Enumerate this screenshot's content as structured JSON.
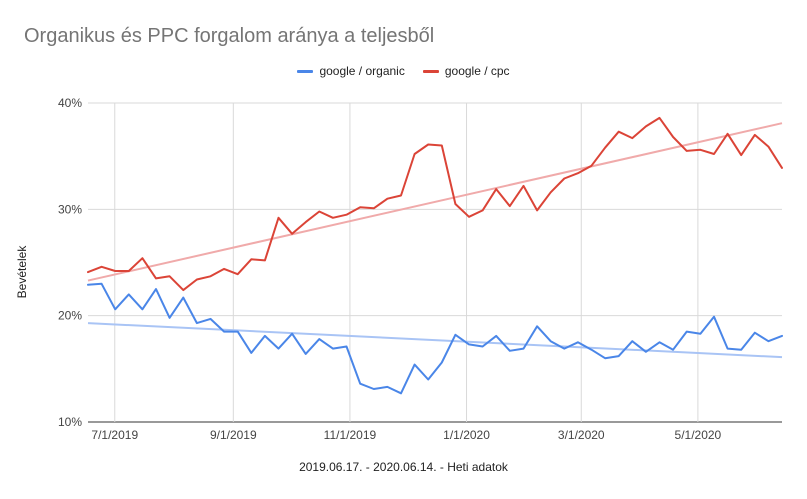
{
  "chart_data": {
    "type": "line",
    "title": "Organikus és PPC forgalom aránya a teljesből",
    "xlabel": "2019.06.17. - 2020.06.14. - Heti adatok",
    "ylabel": "Bevételek",
    "legend_position": "top-center",
    "grid": true,
    "ylim": [
      10,
      40
    ],
    "y_ticks": [
      "10%",
      "20%",
      "30%",
      "40%"
    ],
    "x_range": [
      "2019-06-17",
      "2020-06-14"
    ],
    "x_ticks": [
      {
        "label": "7/1/2019",
        "date": "2019-07-01"
      },
      {
        "label": "9/1/2019",
        "date": "2019-09-01"
      },
      {
        "label": "11/1/2019",
        "date": "2019-11-01"
      },
      {
        "label": "1/1/2020",
        "date": "2020-01-01"
      },
      {
        "label": "3/1/2020",
        "date": "2020-03-01"
      },
      {
        "label": "5/1/2020",
        "date": "2020-05-01"
      }
    ],
    "series": [
      {
        "name": "google / organic",
        "color": "#4a86e8",
        "trendline_color": "#a9c4f5",
        "trendline": [
          19.3,
          16.1
        ],
        "values": [
          22.9,
          23.0,
          20.6,
          22.0,
          20.6,
          22.5,
          19.8,
          21.7,
          19.3,
          19.7,
          18.5,
          18.5,
          16.5,
          18.1,
          16.9,
          18.3,
          16.4,
          17.8,
          16.9,
          17.1,
          13.6,
          13.1,
          13.3,
          12.7,
          15.4,
          14.0,
          15.6,
          18.2,
          17.3,
          17.1,
          18.1,
          16.7,
          16.9,
          19.0,
          17.6,
          16.9,
          17.5,
          16.8,
          16.0,
          16.2,
          17.6,
          16.6,
          17.5,
          16.8,
          18.5,
          18.3,
          19.9,
          16.9,
          16.8,
          18.4,
          17.6,
          18.1
        ]
      },
      {
        "name": "google / cpc",
        "color": "#db4437",
        "trendline_color": "#f0aaaa",
        "trendline": [
          23.3,
          38.1
        ],
        "values": [
          24.1,
          24.6,
          24.2,
          24.2,
          25.4,
          23.5,
          23.7,
          22.4,
          23.4,
          23.7,
          24.4,
          23.9,
          25.3,
          25.2,
          29.2,
          27.7,
          28.8,
          29.8,
          29.2,
          29.5,
          30.2,
          30.1,
          31.0,
          31.3,
          35.2,
          36.1,
          36.0,
          30.5,
          29.3,
          29.9,
          31.9,
          30.3,
          32.2,
          29.9,
          31.6,
          32.9,
          33.4,
          34.1,
          35.8,
          37.3,
          36.7,
          37.8,
          38.6,
          36.8,
          35.5,
          35.6,
          35.2,
          37.1,
          35.1,
          37.0,
          35.9,
          33.9
        ]
      }
    ]
  }
}
